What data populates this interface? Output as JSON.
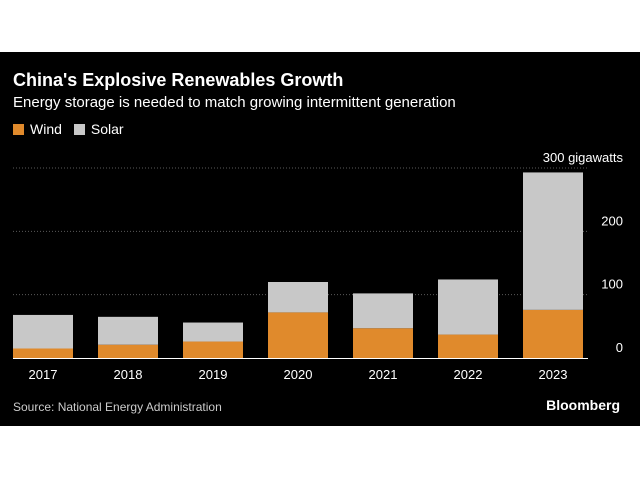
{
  "header": {
    "title": "China's Explosive Renewables Growth",
    "subtitle": "Energy storage is needed to match growing intermittent generation"
  },
  "legend": {
    "wind_label": "Wind",
    "solar_label": "Solar"
  },
  "colors": {
    "wind": "#e08a2c",
    "solar": "#c8c8c8",
    "grid": "#5a5a5a"
  },
  "footer": {
    "source": "Source: National Energy Administration",
    "brand": "Bloomberg"
  },
  "chart_data": {
    "type": "bar",
    "stacked": true,
    "categories": [
      "2017",
      "2018",
      "2019",
      "2020",
      "2021",
      "2022",
      "2023"
    ],
    "series": [
      {
        "name": "Wind",
        "values": [
          15,
          21,
          26,
          72,
          47,
          37,
          76
        ]
      },
      {
        "name": "Solar",
        "values": [
          53,
          44,
          30,
          48,
          55,
          87,
          217
        ]
      }
    ],
    "ylim": [
      0,
      300
    ],
    "yticks": [
      {
        "value": 0,
        "label": "0"
      },
      {
        "value": 100,
        "label": "100"
      },
      {
        "value": 200,
        "label": "200"
      },
      {
        "value": 300,
        "label": "300 gigawatts"
      }
    ],
    "grid": true,
    "legend_position": "top-left",
    "title": "China's Explosive Renewables Growth",
    "subtitle": "Energy storage is needed to match growing intermittent generation",
    "xlabel": "",
    "ylabel": ""
  }
}
